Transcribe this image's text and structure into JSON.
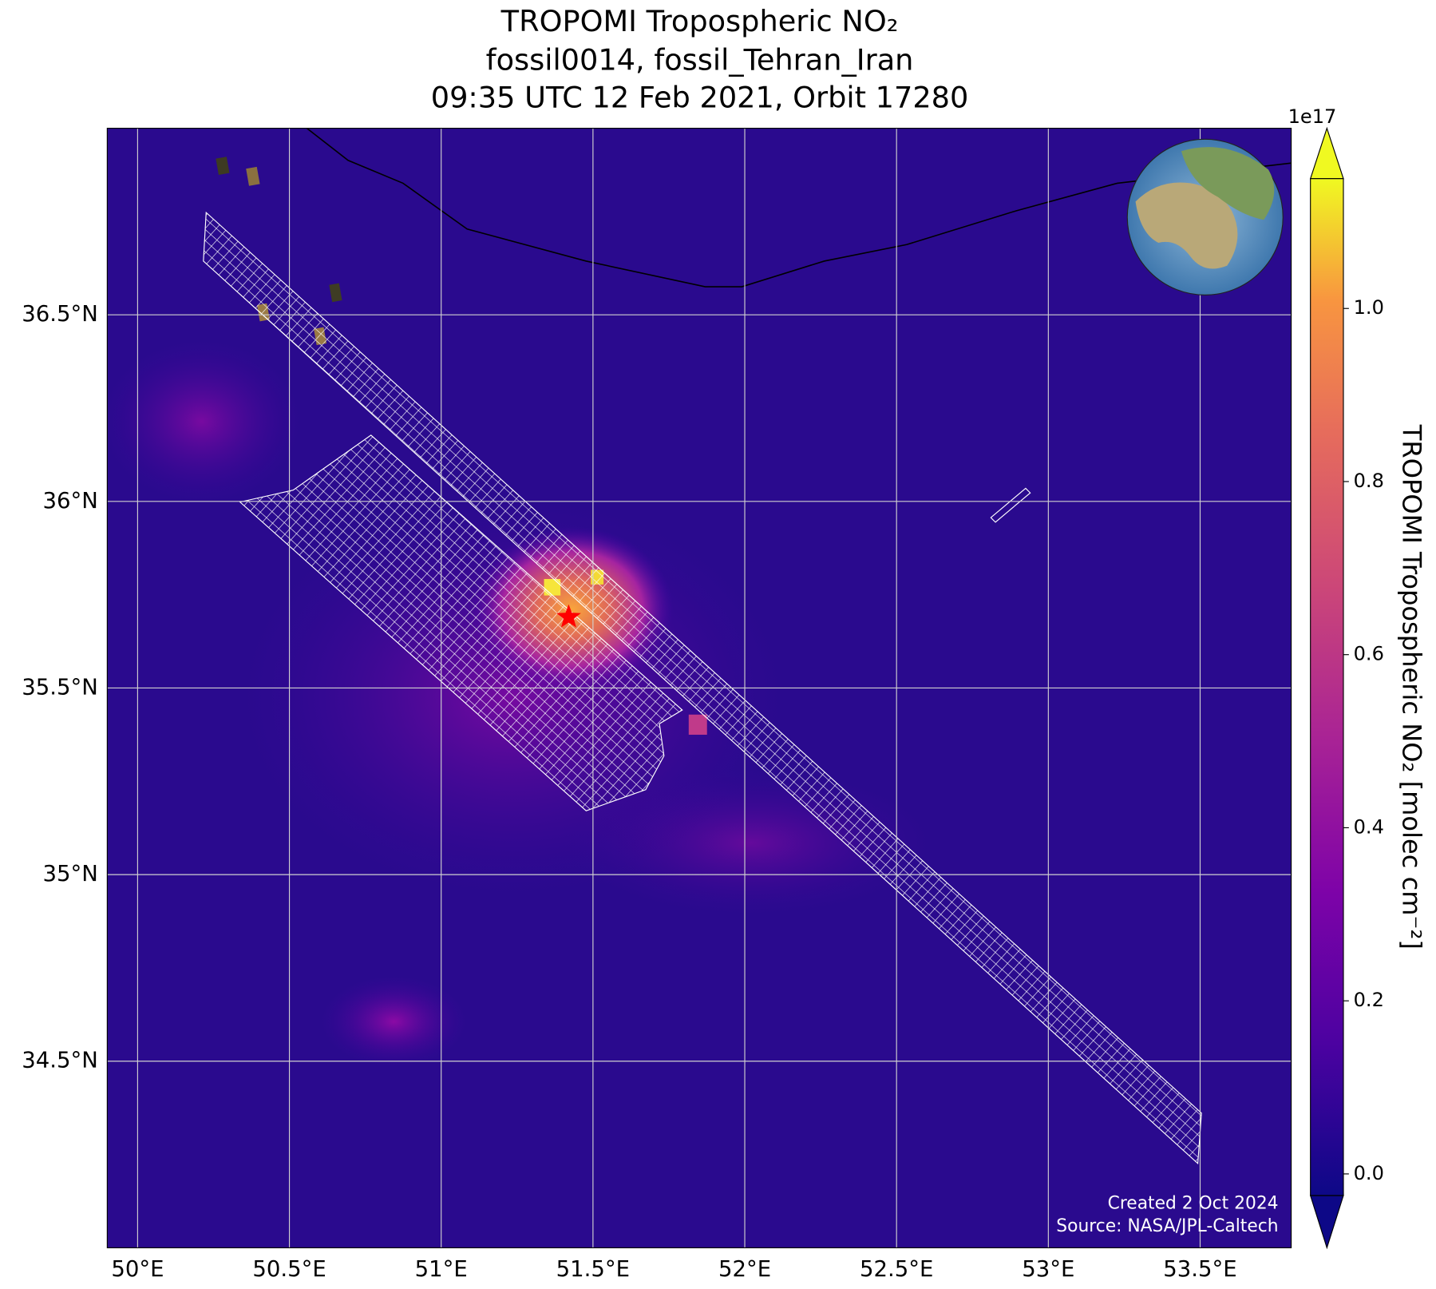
{
  "chart_data": {
    "type": "map",
    "title": [
      "TROPOMI Tropospheric NO₂",
      "fossil0014, fossil_Tehran_Iran",
      "09:35 UTC 12 Feb 2021, Orbit 17280"
    ],
    "xlim": [
      49.9,
      53.8
    ],
    "ylim": [
      34.0,
      37.0
    ],
    "xticks": [
      {
        "value": 50,
        "label": "50°E"
      },
      {
        "value": 50.5,
        "label": "50.5°E"
      },
      {
        "value": 51,
        "label": "51°E"
      },
      {
        "value": 51.5,
        "label": "51.5°E"
      },
      {
        "value": 52,
        "label": "52°E"
      },
      {
        "value": 52.5,
        "label": "52.5°E"
      },
      {
        "value": 53,
        "label": "53°E"
      },
      {
        "value": 53.5,
        "label": "53.5°E"
      }
    ],
    "yticks": [
      {
        "value": 34.5,
        "label": "34.5°N"
      },
      {
        "value": 35,
        "label": "35°N"
      },
      {
        "value": 35.5,
        "label": "35.5°N"
      },
      {
        "value": 36,
        "label": "36°N"
      },
      {
        "value": 36.5,
        "label": "36.5°N"
      }
    ],
    "grid": true,
    "site": {
      "lon": 51.42,
      "lat": 35.69,
      "color": "#ff0000"
    },
    "colorbar": {
      "label": "TROPOMI Tropospheric NO₂ [molec cm⁻²]",
      "offset_label": "1e17",
      "lim": [
        -0.025,
        1.15
      ],
      "ticks": [
        {
          "value": 0,
          "label": "0.0"
        },
        {
          "value": 0.2,
          "label": "0.2"
        },
        {
          "value": 0.4,
          "label": "0.4"
        },
        {
          "value": 0.6,
          "label": "0.6"
        },
        {
          "value": 0.8,
          "label": "0.8"
        },
        {
          "value": 1.0,
          "label": "1.0"
        }
      ]
    },
    "footer": [
      "Created 2 Oct 2024",
      "Source: NASA/JPL-Caltech"
    ]
  }
}
